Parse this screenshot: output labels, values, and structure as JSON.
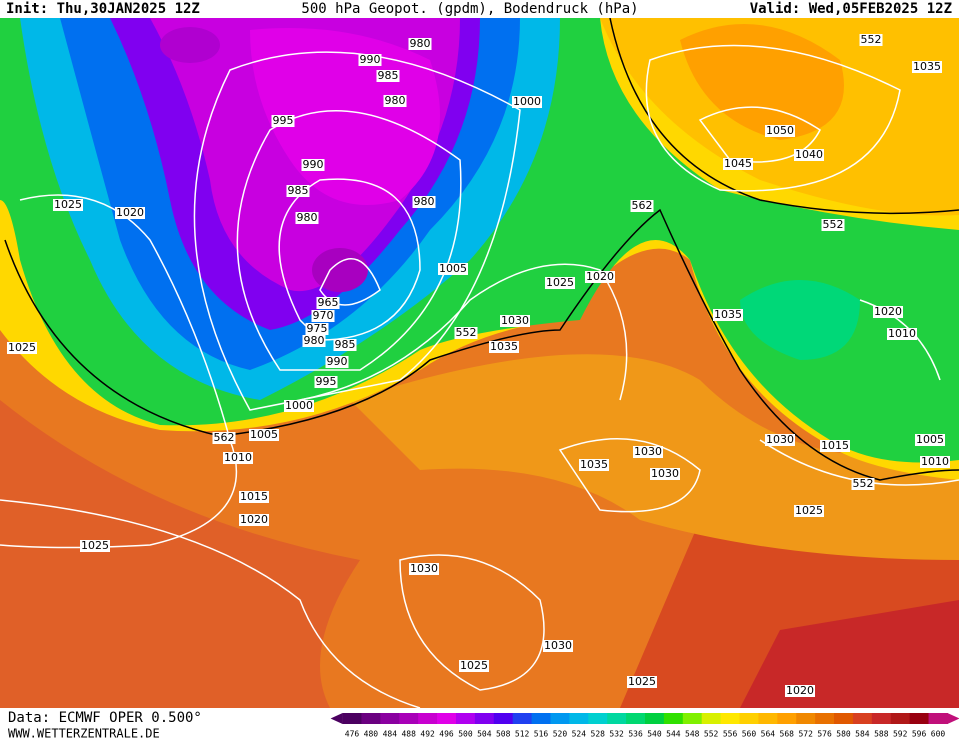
{
  "header": {
    "init": "Init: Thu,30JAN2025 12Z",
    "title": "500 hPa Geopot. (gpdm), Bodendruck (hPa)",
    "valid": "Valid: Wed,05FEB2025 12Z"
  },
  "footer": {
    "source": "Data: ECMWF OPER 0.500°",
    "site": "WWW.WETTERZENTRALE.DE"
  },
  "isobar_labels": [
    "1025",
    "1020",
    "1025",
    "980",
    "990",
    "985",
    "980",
    "995",
    "1000",
    "990",
    "985",
    "980",
    "980",
    "1005",
    "965",
    "970",
    "975",
    "980",
    "985",
    "990",
    "995",
    "1000",
    "562",
    "1005",
    "1010",
    "1015",
    "1020",
    "1025",
    "1030",
    "1025",
    "1030",
    "1025",
    "1020",
    "1035",
    "1030",
    "1030",
    "1025",
    "552",
    "1015",
    "1030",
    "1005",
    "1010",
    "1020",
    "1010",
    "1035",
    "1035",
    "1030",
    "552",
    "1025",
    "1020",
    "562",
    "552",
    "1045",
    "1040",
    "1050",
    "552",
    "1035"
  ],
  "colorbar": {
    "values": [
      476,
      480,
      484,
      488,
      492,
      496,
      500,
      504,
      508,
      512,
      516,
      520,
      524,
      528,
      532,
      536,
      540,
      544,
      548,
      552,
      556,
      560,
      564,
      568,
      572,
      576,
      580,
      584,
      588,
      592,
      596,
      600
    ],
    "colors": [
      "#4b0060",
      "#6a0080",
      "#8a00a0",
      "#a800b8",
      "#c800d0",
      "#e000e8",
      "#b000f0",
      "#8000f0",
      "#5000f0",
      "#2040f0",
      "#0070f0",
      "#0098f0",
      "#00b8e8",
      "#00d0d0",
      "#00d8a0",
      "#00d870",
      "#00d040",
      "#30e000",
      "#80f000",
      "#d8f000",
      "#ffe800",
      "#ffd000",
      "#ffb800",
      "#ffa000",
      "#f08800",
      "#e87000",
      "#e05800",
      "#d84020",
      "#c82828",
      "#b01818",
      "#980010",
      "#c0107a"
    ]
  }
}
